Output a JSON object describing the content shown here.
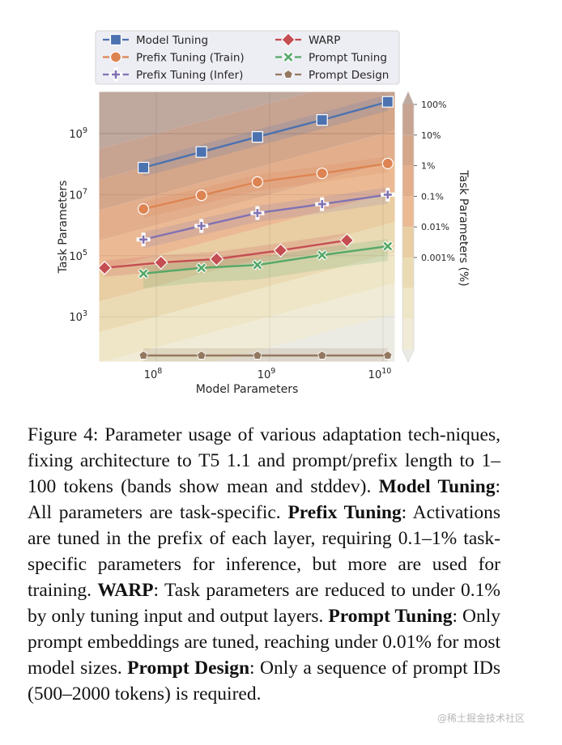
{
  "chart_data": {
    "type": "line",
    "title": "",
    "xlabel": "Model Parameters",
    "ylabel": "Task Parameters",
    "xscale": "log",
    "yscale": "log",
    "xlim_log10": [
      7.5,
      10.1
    ],
    "ylim_log10": [
      1.3,
      10.3
    ],
    "x_ticks": [
      {
        "log10": 8,
        "base": "10",
        "exp": "8"
      },
      {
        "log10": 9,
        "base": "10",
        "exp": "9"
      },
      {
        "log10": 10,
        "base": "10",
        "exp": "10"
      }
    ],
    "y_ticks": [
      {
        "log10": 3,
        "base": "10",
        "exp": "3"
      },
      {
        "log10": 5,
        "base": "10",
        "exp": "5"
      },
      {
        "log10": 7,
        "base": "10",
        "exp": "7"
      },
      {
        "log10": 9,
        "base": "10",
        "exp": "9"
      }
    ],
    "grid": true,
    "legend_position": "top",
    "series": [
      {
        "name": "Model Tuning",
        "color": "#4c72b0",
        "marker": "square",
        "x": [
          77000000.0,
          250000000.0,
          780000000.0,
          2900000000.0,
          11000000000.0
        ],
        "y": [
          77000000.0,
          250000000.0,
          780000000.0,
          2800000000.0,
          11000000000.0
        ]
      },
      {
        "name": "Prefix Tuning (Train)",
        "color": "#dd8452",
        "marker": "circle",
        "x": [
          77000000.0,
          250000000.0,
          780000000.0,
          2900000000.0,
          11000000000.0
        ],
        "y": [
          3400000.0,
          9500000.0,
          26000000.0,
          50000000.0,
          105000000.0
        ]
      },
      {
        "name": "Prefix Tuning (Infer)",
        "color": "#8172b3",
        "marker": "plus",
        "x": [
          77000000.0,
          250000000.0,
          780000000.0,
          2900000000.0,
          11000000000.0
        ],
        "y": [
          340000.0,
          950000.0,
          2500000.0,
          4900000.0,
          10000000.0
        ]
      },
      {
        "name": "WARP",
        "color": "#c44e52",
        "marker": "diamond",
        "x": [
          35000000.0,
          110000000.0,
          340000000.0,
          1250000000.0,
          4800000000.0
        ],
        "y": [
          40000.0,
          60000.0,
          78000.0,
          150000.0,
          320000.0
        ]
      },
      {
        "name": "Prompt Tuning",
        "color": "#55a868",
        "marker": "x",
        "x": [
          77000000.0,
          250000000.0,
          780000000.0,
          2900000000.0,
          11000000000.0
        ],
        "y": [
          26000.0,
          40000.0,
          50000.0,
          105000.0,
          205000.0
        ]
      },
      {
        "name": "Prompt Design",
        "color": "#937860",
        "marker": "pentagon",
        "x": [
          77000000.0,
          250000000.0,
          780000000.0,
          2900000000.0,
          11000000000.0
        ],
        "y": [
          54,
          54,
          54,
          54,
          54
        ]
      }
    ],
    "colorbar": {
      "label": "Task Parameters (%)",
      "ticks": [
        "100%",
        "10%",
        "1%",
        "0.1%",
        "0.01%",
        "0.001%"
      ],
      "levels_log10_percent": [
        3,
        2,
        1,
        0,
        -1,
        -2,
        -3,
        -4,
        -5,
        -6
      ],
      "colors": [
        "#bfa89d",
        "#c7a392",
        "#d4a68a",
        "#e2ae8c",
        "#ebba94",
        "#e9cda3",
        "#ebdbb4",
        "#eee6c6",
        "#efebd6",
        "#ecebe3"
      ],
      "extend": "both"
    }
  },
  "caption": {
    "segments": [
      {
        "text": "Figure 4: Parameter usage of various adaptation tech-­niques, fixing architecture to T5 1.1 and prompt/prefix length to 1–100 tokens (bands show mean and stddev). ",
        "bold": false
      },
      {
        "text": "Model Tuning",
        "bold": true
      },
      {
        "text": ": All parameters are task-specific. ",
        "bold": false
      },
      {
        "text": "Prefix Tuning",
        "bold": true
      },
      {
        "text": ": Activations are tuned in the prefix of each layer, requiring 0.1–1% task-specific parameters for inference, but more are used for training. ",
        "bold": false
      },
      {
        "text": "WARP",
        "bold": true
      },
      {
        "text": ": Task parameters are reduced to under 0.1% by only tuning input and output layers. ",
        "bold": false
      },
      {
        "text": "Prompt Tuning",
        "bold": true
      },
      {
        "text": ": Only prompt embeddings are tuned, reaching under 0.01% for most model sizes. ",
        "bold": false
      },
      {
        "text": "Prompt Design",
        "bold": true
      },
      {
        "text": ": Only a sequence of prompt IDs (500–2000 tokens) is required.",
        "bold": false
      }
    ]
  },
  "watermark": "@稀土掘金技术社区"
}
